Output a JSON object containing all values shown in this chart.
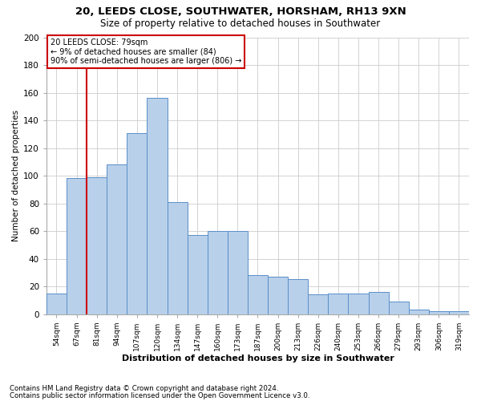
{
  "title1": "20, LEEDS CLOSE, SOUTHWATER, HORSHAM, RH13 9XN",
  "title2": "Size of property relative to detached houses in Southwater",
  "xlabel": "Distribution of detached houses by size in Southwater",
  "ylabel": "Number of detached properties",
  "categories": [
    "54sqm",
    "67sqm",
    "81sqm",
    "94sqm",
    "107sqm",
    "120sqm",
    "134sqm",
    "147sqm",
    "160sqm",
    "173sqm",
    "187sqm",
    "200sqm",
    "213sqm",
    "226sqm",
    "240sqm",
    "253sqm",
    "266sqm",
    "279sqm",
    "293sqm",
    "306sqm",
    "319sqm"
  ],
  "values": [
    15,
    98,
    99,
    108,
    131,
    156,
    81,
    57,
    60,
    60,
    28,
    27,
    25,
    14,
    15,
    15,
    16,
    9,
    3,
    2,
    2
  ],
  "bar_color": "#b8d0ea",
  "bar_edge_color": "#5b8fc9",
  "vline_color": "#cc0000",
  "vline_x": 1.5,
  "annotation_text": "20 LEEDS CLOSE: 79sqm\n← 9% of detached houses are smaller (84)\n90% of semi-detached houses are larger (806) →",
  "annotation_edge_color": "#cc0000",
  "ylim": [
    0,
    200
  ],
  "yticks": [
    0,
    20,
    40,
    60,
    80,
    100,
    120,
    140,
    160,
    180,
    200
  ],
  "footnote1": "Contains HM Land Registry data © Crown copyright and database right 2024.",
  "footnote2": "Contains public sector information licensed under the Open Government Licence v3.0.",
  "bg_color": "#ffffff",
  "grid_color": "#cccccc"
}
